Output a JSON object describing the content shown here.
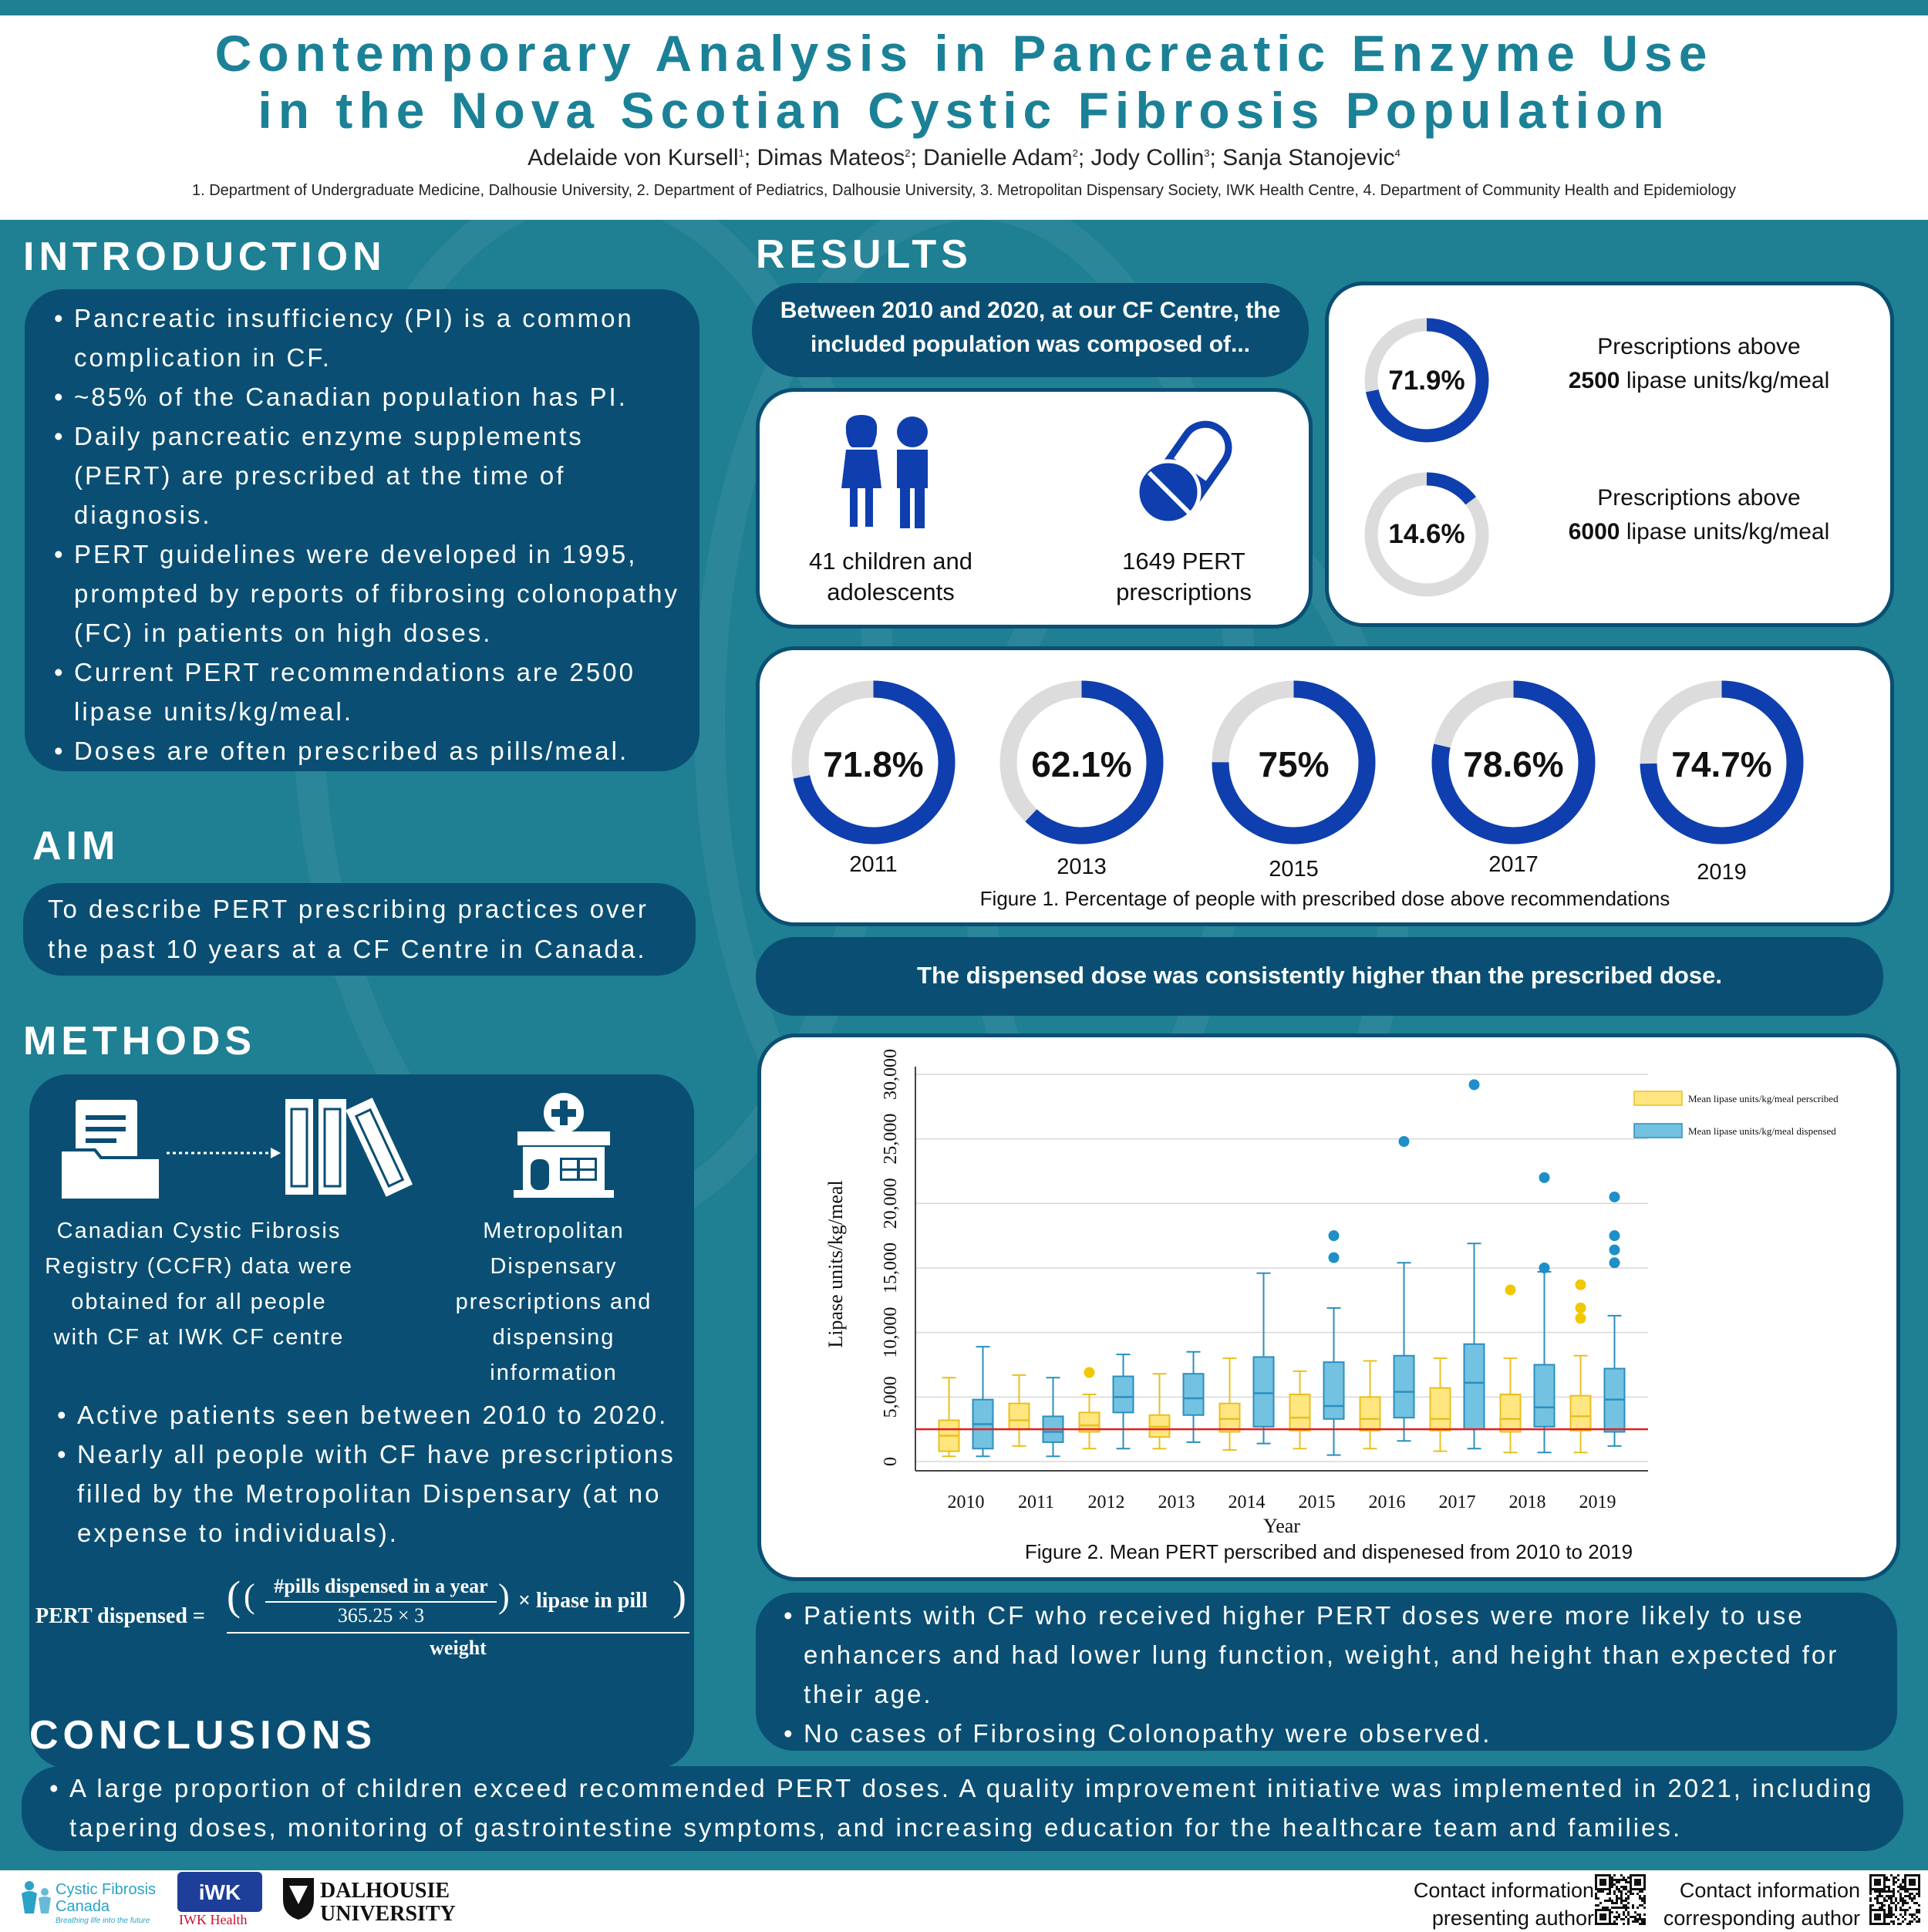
{
  "header": {
    "title_line1": "Contemporary Analysis in Pancreatic Enzyme Use",
    "title_line2": "in the Nova Scotian Cystic Fibrosis Population",
    "authors": [
      {
        "name": "Adelaide von Kursell",
        "sup": "1"
      },
      {
        "name": "Dimas Mateos",
        "sup": "2"
      },
      {
        "name": "Danielle Adam",
        "sup": "2"
      },
      {
        "name": "Jody Collin",
        "sup": "3"
      },
      {
        "name": "Sanja Stanojevic",
        "sup": "4"
      }
    ],
    "affiliations": "1. Department of Undergraduate Medicine, Dalhousie University, 2. Department of Pediatrics, Dalhousie University, 3. Metropolitan Dispensary Society, IWK Health Centre, 4. Department of Community Health and Epidemiology"
  },
  "introduction": {
    "title": "INTRODUCTION",
    "bullets": [
      "Pancreatic insufficiency (PI) is a common complication in CF.",
      "~85% of the Canadian population has PI.",
      "Daily pancreatic enzyme supplements (PERT) are prescribed at the time of diagnosis.",
      "PERT guidelines were developed in 1995, prompted by reports of fibrosing colonopathy (FC) in patients on high doses.",
      "Current PERT recommendations are 2500 lipase units/kg/meal.",
      "Doses are often prescribed as pills/meal."
    ]
  },
  "aim": {
    "title": "AIM",
    "text": "To describe PERT prescribing practices over the past 10 years at a CF Centre in Canada."
  },
  "methods": {
    "title": "METHODS",
    "source1": "Canadian Cystic Fibrosis Registry (CCFR) data were obtained for all people with CF at IWK CF centre",
    "source2": "Metropolitan Dispensary prescriptions and dispensing information",
    "bullets": [
      "Active patients seen between 2010 to 2020.",
      "Nearly all people with CF have prescriptions filled by the Metropolitan Dispensary (at no expense to individuals)."
    ],
    "formula": {
      "lhs": "PERT dispensed =",
      "numerator": "#pills dispensed in a year",
      "denominator": "365.25 × 3",
      "times": "× lipase in pill",
      "weight": "weight"
    },
    "icons": [
      "document-folder-icon",
      "binders-icon",
      "pharmacy-icon"
    ]
  },
  "results": {
    "title": "RESULTS",
    "intro": "Between 2010 and 2020, at our CF Centre, the included population was composed of...",
    "children_label": "41 children and adolescents",
    "prescriptions_label": "1649 PERT prescriptions",
    "stat_above_2500": {
      "value": "71.9%",
      "pct": 71.9,
      "label_prefix": "Prescriptions above",
      "label_bold": "2500",
      "label_suffix": "lipase units/kg/meal"
    },
    "stat_above_6000": {
      "value": "14.6%",
      "pct": 14.6,
      "label_prefix": "Prescriptions above",
      "label_bold": "6000",
      "label_suffix": "lipase units/kg/meal"
    },
    "figure1": {
      "caption": "Figure 1. Percentage of people with prescribed dose above recommendations",
      "items": [
        {
          "year": "2011",
          "value": "71.8%",
          "pct": 71.8
        },
        {
          "year": "2013",
          "value": "62.1%",
          "pct": 62.1
        },
        {
          "year": "2015",
          "value": "75%",
          "pct": 75
        },
        {
          "year": "2017",
          "value": "78.6%",
          "pct": 78.6
        },
        {
          "year": "2019",
          "value": "74.7%",
          "pct": 74.7
        }
      ]
    },
    "dispensed_banner": "The dispensed dose was consistently higher than the prescribed dose.",
    "figure2_caption": "Figure 2. Mean PERT perscribed and dispenesed from 2010 to 2019",
    "bullets": [
      "Patients with CF who received higher PERT doses were more likely to use enhancers and had lower lung function, weight, and height than expected for their age.",
      "No cases of Fibrosing Colonopathy were observed."
    ]
  },
  "conclusions": {
    "title": "CONCLUSIONS",
    "text": "A large proportion of children exceed recommended PERT doses. A quality improvement initiative was implemented in 2021, including tapering doses, monitoring of gastrointestine symptoms, and increasing education for the healthcare team and families."
  },
  "footer": {
    "cf_canada": "Cystic Fibrosis Canada",
    "cf_tagline": "Breathing life into the future",
    "iwk": "IWK Health",
    "dal_line1": "DALHOUSIE",
    "dal_line2": "UNIVERSITY",
    "contact1_line1": "Contact information",
    "contact1_line2": "presenting author",
    "contact2_line1": "Contact information",
    "contact2_line2": "corresponding author"
  },
  "colors": {
    "teal": "#1f7f93",
    "navy": "#0a4f73",
    "ring_blue": "#0f3fae",
    "ring_gray": "#dcdcdc",
    "prescribed": "#ffe680",
    "dispensed": "#74c2e1",
    "reference_line": "#e02020"
  },
  "chart_data": {
    "type": "box",
    "ylabel": "Lipase units/kg/meal",
    "xlabel": "Year",
    "ylim": [
      0,
      30000
    ],
    "yticks": [
      "0",
      "5,000",
      "10,000",
      "15,000",
      "20,000",
      "25,000",
      "30,000"
    ],
    "reference_line": 2500,
    "categories": [
      "2010",
      "2011",
      "2012",
      "2013",
      "2014",
      "2015",
      "2016",
      "2017",
      "2018",
      "2019"
    ],
    "series": [
      {
        "name": "Mean lipase units/kg/meal perscribed",
        "boxes": [
          {
            "min": 400,
            "q1": 800,
            "median": 2000,
            "q3": 3200,
            "max": 6500,
            "outliers": []
          },
          {
            "min": 1200,
            "q1": 2500,
            "median": 3200,
            "q3": 4500,
            "max": 6700,
            "outliers": []
          },
          {
            "min": 1000,
            "q1": 2300,
            "median": 2800,
            "q3": 3800,
            "max": 5200,
            "outliers": [
              6900
            ]
          },
          {
            "min": 1000,
            "q1": 1900,
            "median": 2700,
            "q3": 3600,
            "max": 6800,
            "outliers": []
          },
          {
            "min": 900,
            "q1": 2300,
            "median": 3300,
            "q3": 4500,
            "max": 8000,
            "outliers": []
          },
          {
            "min": 1000,
            "q1": 2400,
            "median": 3400,
            "q3": 5200,
            "max": 7000,
            "outliers": []
          },
          {
            "min": 1000,
            "q1": 2400,
            "median": 3300,
            "q3": 5000,
            "max": 7800,
            "outliers": []
          },
          {
            "min": 800,
            "q1": 2400,
            "median": 3300,
            "q3": 5700,
            "max": 8000,
            "outliers": []
          },
          {
            "min": 700,
            "q1": 2300,
            "median": 3300,
            "q3": 5200,
            "max": 8000,
            "outliers": [
              13300
            ]
          },
          {
            "min": 700,
            "q1": 2400,
            "median": 3500,
            "q3": 5100,
            "max": 8200,
            "outliers": [
              11100,
              11900,
              13700
            ]
          }
        ]
      },
      {
        "name": "Mean lipase units/kg/meal dispensed",
        "boxes": [
          {
            "min": 400,
            "q1": 1000,
            "median": 2900,
            "q3": 4800,
            "max": 8900,
            "outliers": []
          },
          {
            "min": 400,
            "q1": 1500,
            "median": 2300,
            "q3": 3500,
            "max": 6500,
            "outliers": []
          },
          {
            "min": 1000,
            "q1": 3800,
            "median": 5000,
            "q3": 6600,
            "max": 8300,
            "outliers": []
          },
          {
            "min": 1500,
            "q1": 3600,
            "median": 4900,
            "q3": 6800,
            "max": 8500,
            "outliers": []
          },
          {
            "min": 1400,
            "q1": 2700,
            "median": 5300,
            "q3": 8100,
            "max": 14600,
            "outliers": []
          },
          {
            "min": 500,
            "q1": 3300,
            "median": 4300,
            "q3": 7700,
            "max": 11900,
            "outliers": [
              15800,
              17500
            ]
          },
          {
            "min": 1600,
            "q1": 3400,
            "median": 5400,
            "q3": 8200,
            "max": 15400,
            "outliers": [
              24800
            ]
          },
          {
            "min": 1000,
            "q1": 2500,
            "median": 6100,
            "q3": 9100,
            "max": 16900,
            "outliers": [
              29200
            ]
          },
          {
            "min": 700,
            "q1": 2700,
            "median": 4200,
            "q3": 7500,
            "max": 14700,
            "outliers": [
              15000,
              22000
            ]
          },
          {
            "min": 1200,
            "q1": 2300,
            "median": 4800,
            "q3": 7200,
            "max": 11300,
            "outliers": [
              15400,
              16400,
              17500,
              20500
            ]
          }
        ]
      }
    ]
  }
}
